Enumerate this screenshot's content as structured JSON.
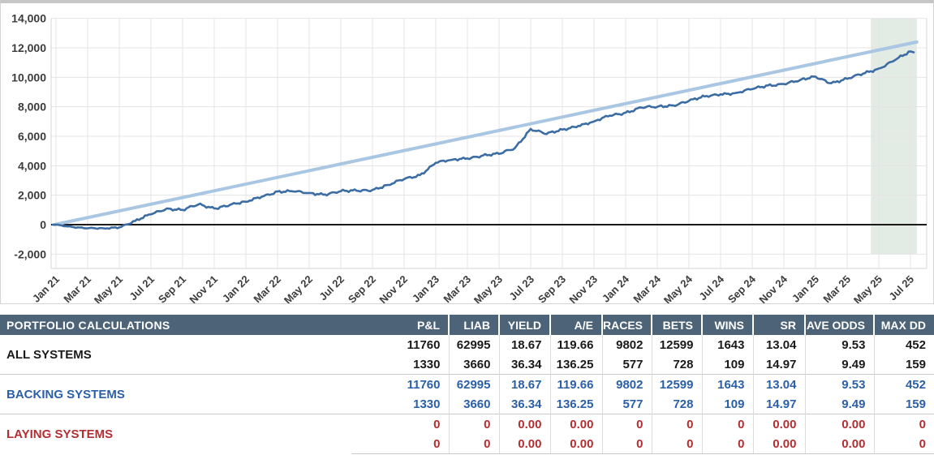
{
  "chart_data": {
    "type": "line",
    "title": "",
    "xlabel": "",
    "ylabel": "",
    "ylim": [
      -3000,
      14000
    ],
    "grid": true,
    "legend_position": "none",
    "y_ticks": [
      {
        "value": 14000,
        "label": "14,000"
      },
      {
        "value": 12000,
        "label": "12,000"
      },
      {
        "value": 10000,
        "label": "10,000"
      },
      {
        "value": 8000,
        "label": "8,000"
      },
      {
        "value": 6000,
        "label": "6,000"
      },
      {
        "value": 4000,
        "label": "4,000"
      },
      {
        "value": 2000,
        "label": "2,000"
      },
      {
        "value": 0,
        "label": "0"
      },
      {
        "value": -2000,
        "label": "-2,000"
      }
    ],
    "x_tick_labels": [
      "Jan 21",
      "Mar 21",
      "May 21",
      "Jul 21",
      "Sep 21",
      "Nov 21",
      "Jan 22",
      "Mar 22",
      "May 22",
      "Jul 22",
      "Sep 22",
      "Nov 22",
      "Jan 23",
      "Mar 23",
      "May 23",
      "Jul 23",
      "Sep 23",
      "Nov 23",
      "Jan 24",
      "Mar 24",
      "May 24",
      "Jul 24",
      "Sep 24",
      "Nov 24",
      "Jan 25",
      "Mar 25",
      "May 25",
      "Jul 25"
    ],
    "series": [
      {
        "name": "cumulative-pnl",
        "color": "#3b6ca3",
        "months_from_jan21": [
          0,
          1,
          2,
          3,
          4,
          5,
          6,
          7,
          8,
          9,
          10,
          11,
          12,
          13,
          14,
          15,
          16,
          17,
          18,
          19,
          20,
          21,
          22,
          23,
          24,
          25,
          26,
          27,
          28,
          29,
          30,
          31,
          32,
          33,
          34,
          35,
          36,
          37,
          38,
          39,
          40,
          41,
          42,
          43,
          44,
          45,
          46,
          47,
          48,
          49,
          50,
          51,
          52,
          53,
          54
        ],
        "values": [
          0,
          -150,
          -250,
          -250,
          -180,
          250,
          700,
          1100,
          1000,
          1370,
          1100,
          1350,
          1550,
          1900,
          2250,
          2250,
          2150,
          2050,
          2270,
          2300,
          2360,
          2700,
          3090,
          3365,
          4200,
          4400,
          4500,
          4700,
          4800,
          5200,
          6500,
          6150,
          6450,
          6700,
          7000,
          7400,
          7600,
          7950,
          8000,
          8100,
          8400,
          8700,
          8850,
          8950,
          9200,
          9450,
          9550,
          9800,
          10050,
          9600,
          9900,
          10250,
          10600,
          11150,
          11760
        ]
      },
      {
        "name": "expected-trend",
        "color": "#a9c6e2",
        "points_months_value": [
          [
            0,
            0
          ],
          [
            54.4,
            12400
          ]
        ]
      }
    ],
    "zero_line_color": "#1a1a1a",
    "highlight_region": {
      "from_month": 51.5,
      "to_month": 54.4,
      "color": "#e2ebe4"
    }
  },
  "table": {
    "header": {
      "title": "PORTFOLIO CALCULATIONS",
      "columns": [
        "P&L",
        "LIAB",
        "YIELD",
        "A/E",
        "RACES",
        "BETS",
        "WINS",
        "SR",
        "AVE ODDS",
        "MAX DD"
      ]
    },
    "groups": [
      {
        "label": "ALL SYSTEMS",
        "color": "#1a1a1a",
        "rows": [
          [
            "11760",
            "62995",
            "18.67",
            "119.66",
            "9802",
            "12599",
            "1643",
            "13.04",
            "9.53",
            "452"
          ],
          [
            "1330",
            "3660",
            "36.34",
            "136.25",
            "577",
            "728",
            "109",
            "14.97",
            "9.49",
            "159"
          ]
        ]
      },
      {
        "label": "BACKING SYSTEMS",
        "color": "#2b5fa7",
        "rows": [
          [
            "11760",
            "62995",
            "18.67",
            "119.66",
            "9802",
            "12599",
            "1643",
            "13.04",
            "9.53",
            "452"
          ],
          [
            "1330",
            "3660",
            "36.34",
            "136.25",
            "577",
            "728",
            "109",
            "14.97",
            "9.49",
            "159"
          ]
        ]
      },
      {
        "label": "LAYING SYSTEMS",
        "color": "#b22e31",
        "rows": [
          [
            "0",
            "0",
            "0.00",
            "0.00",
            "0",
            "0",
            "0",
            "0.00",
            "0.00",
            "0"
          ],
          [
            "0",
            "0",
            "0.00",
            "0.00",
            "0",
            "0",
            "0",
            "0.00",
            "0.00",
            "0"
          ]
        ]
      }
    ]
  },
  "colors": {
    "header_bg": "#4d6377",
    "gridline": "#e4e4e4",
    "plot_border": "#d5d5d5",
    "card_border": "#c6c6c6"
  }
}
